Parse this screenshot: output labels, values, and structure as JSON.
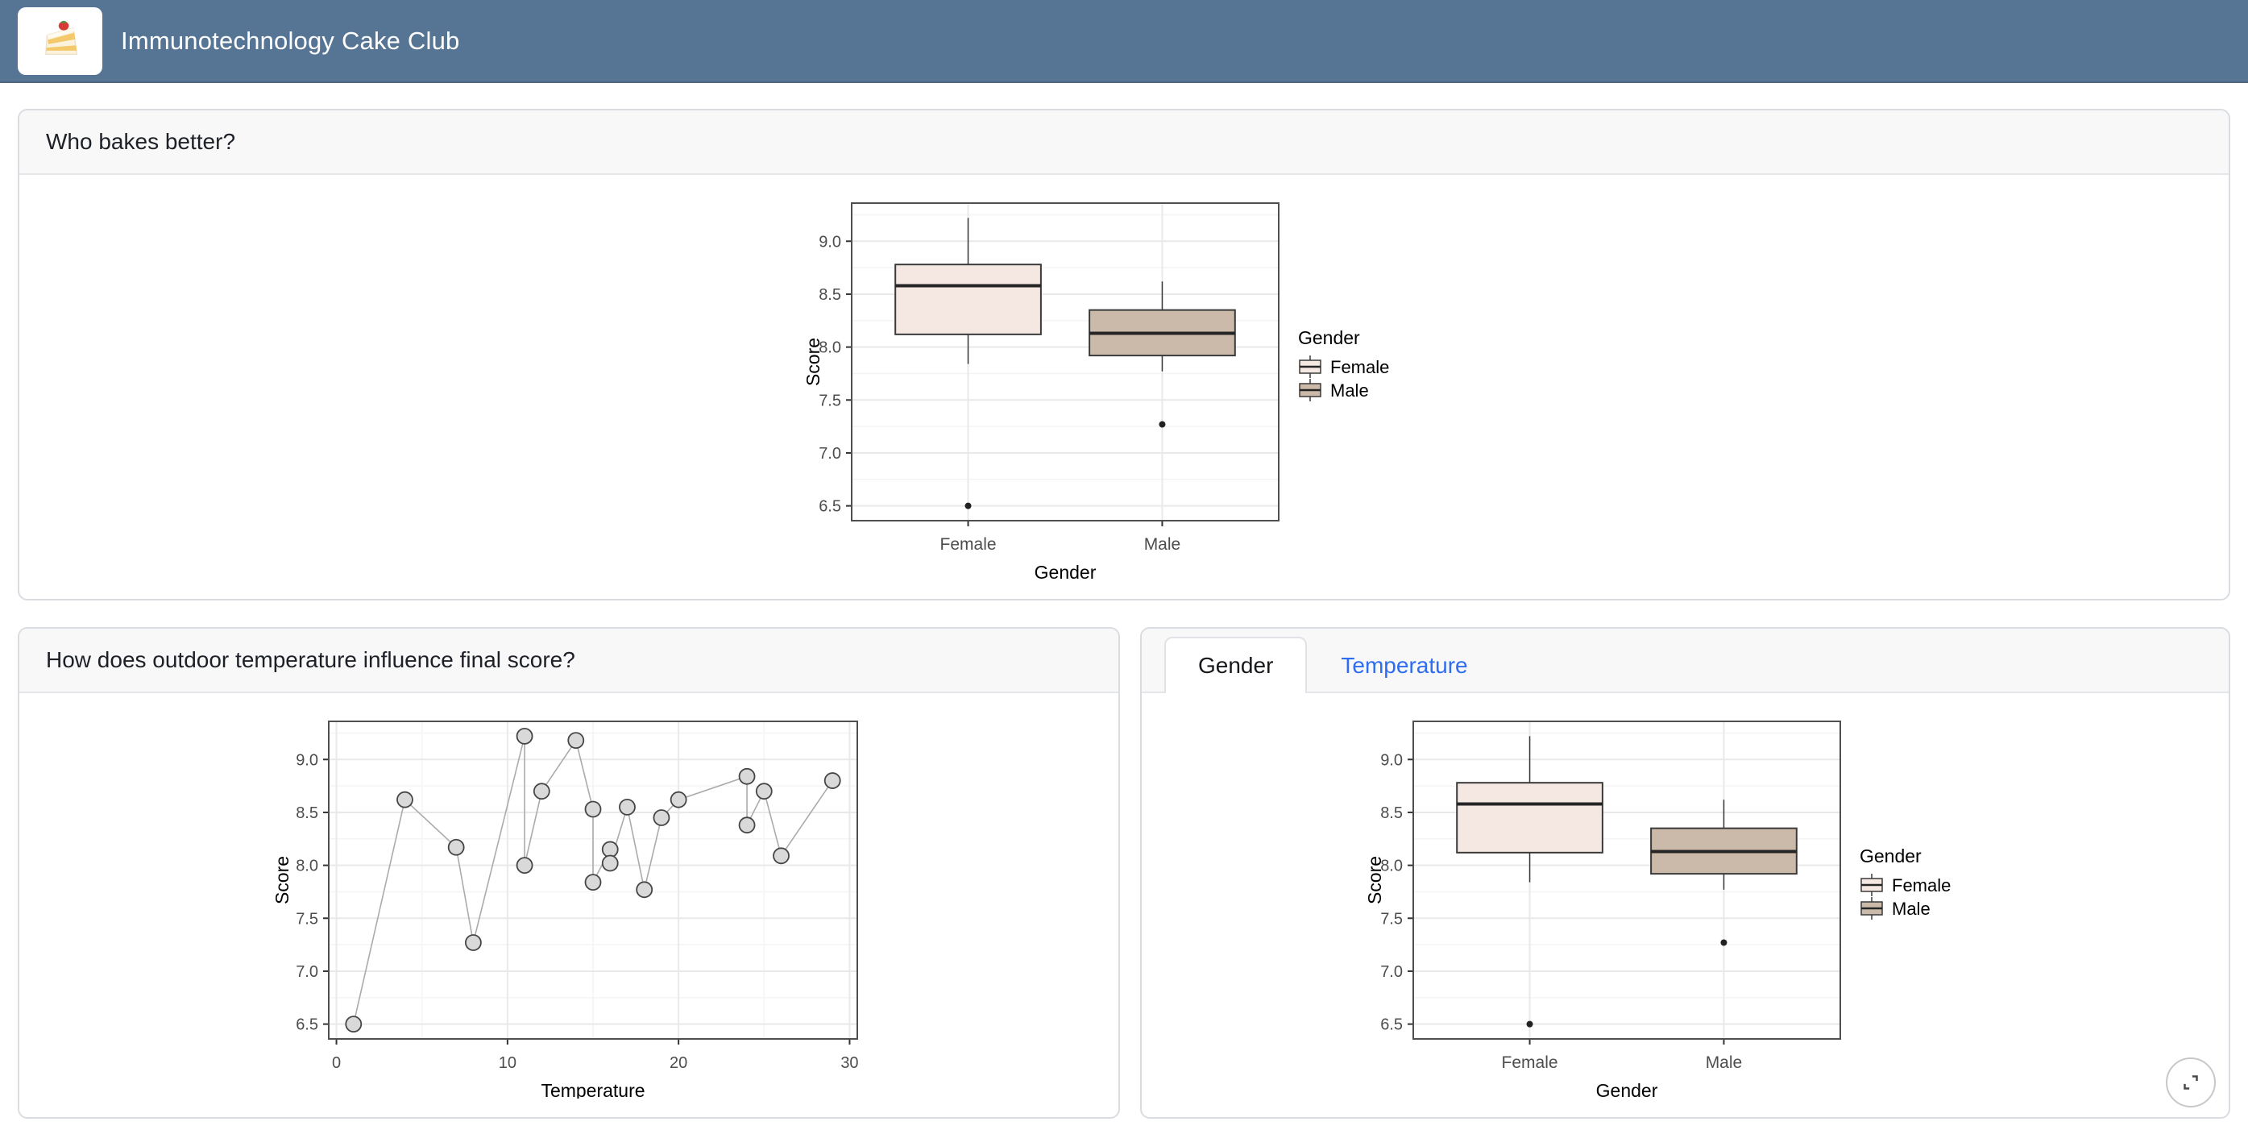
{
  "header": {
    "title": "Immunotechnology Cake Club",
    "logo_icon": "cake-slice-icon"
  },
  "cards": {
    "who_bakes": {
      "title": "Who bakes better?"
    },
    "temperature_card": {
      "title": "How does outdoor temperature influence final score?"
    },
    "tabbed_card": {
      "tabs": [
        {
          "label": "Gender",
          "active": true
        },
        {
          "label": "Temperature",
          "active": false
        }
      ],
      "expand_button_icon": "expand-icon"
    }
  },
  "colors": {
    "header_bg": "#567494",
    "tab_link_blue": "#2e6cf0",
    "female_fill": "#f5e8e2",
    "male_fill": "#cbbaa9",
    "marker_fill": "#d9d9d9",
    "marker_stroke": "#454545",
    "line_gray": "#ababab"
  },
  "chart_data": [
    {
      "type": "boxplot",
      "panel": "who-bakes-better-card",
      "xlabel": "Gender",
      "ylabel": "Score",
      "categories": [
        "Female",
        "Male"
      ],
      "yticks": [
        6.5,
        7.0,
        7.5,
        8.0,
        8.5,
        9.0
      ],
      "ylim": [
        6.36,
        9.36
      ],
      "grid": true,
      "legend": {
        "title": "Gender",
        "position": "right",
        "entries": [
          {
            "label": "Female",
            "fill": "#f5e8e2"
          },
          {
            "label": "Male",
            "fill": "#cbbaa9"
          }
        ]
      },
      "series": [
        {
          "name": "Female",
          "fill": "#f5e8e2",
          "whisker_low": 7.84,
          "q1": 8.12,
          "median": 8.58,
          "q3": 8.78,
          "whisker_high": 9.22,
          "outliers": [
            6.5
          ]
        },
        {
          "name": "Male",
          "fill": "#cbbaa9",
          "whisker_low": 7.77,
          "q1": 7.92,
          "median": 8.13,
          "q3": 8.35,
          "whisker_high": 8.62,
          "outliers": [
            7.27
          ]
        }
      ]
    },
    {
      "type": "line",
      "panel": "temperature-card",
      "xlabel": "Temperature",
      "ylabel": "Score",
      "xticks": [
        0,
        10,
        20,
        30
      ],
      "xticks_minor": [
        5,
        15,
        25
      ],
      "yticks": [
        6.5,
        7.0,
        7.5,
        8.0,
        8.5,
        9.0
      ],
      "xlim": [
        -0.45,
        30.45
      ],
      "ylim": [
        6.36,
        9.36
      ],
      "grid": true,
      "x": [
        1,
        4,
        7,
        8,
        11,
        11,
        12,
        14,
        15,
        15,
        16,
        16,
        17,
        18,
        19,
        20,
        24,
        24,
        25,
        26,
        29
      ],
      "y": [
        6.5,
        8.62,
        8.17,
        7.27,
        9.22,
        8.0,
        8.7,
        9.18,
        8.53,
        7.84,
        8.15,
        8.02,
        8.55,
        7.77,
        8.45,
        8.62,
        8.84,
        8.38,
        8.7,
        8.09,
        8.8
      ],
      "marker": {
        "fill": "#d9d9d9",
        "stroke": "#454545",
        "radius": 9.5
      },
      "line_color": "#ababab"
    },
    {
      "type": "boxplot",
      "panel": "gender-tab",
      "xlabel": "Gender",
      "ylabel": "Score",
      "categories": [
        "Female",
        "Male"
      ],
      "yticks": [
        6.5,
        7.0,
        7.5,
        8.0,
        8.5,
        9.0
      ],
      "ylim": [
        6.36,
        9.36
      ],
      "grid": true,
      "legend": {
        "title": "Gender",
        "position": "right",
        "entries": [
          {
            "label": "Female",
            "fill": "#f5e8e2"
          },
          {
            "label": "Male",
            "fill": "#cbbaa9"
          }
        ]
      },
      "series": [
        {
          "name": "Female",
          "fill": "#f5e8e2",
          "whisker_low": 7.84,
          "q1": 8.12,
          "median": 8.58,
          "q3": 8.78,
          "whisker_high": 9.22,
          "outliers": [
            6.5
          ]
        },
        {
          "name": "Male",
          "fill": "#cbbaa9",
          "whisker_low": 7.77,
          "q1": 7.92,
          "median": 8.13,
          "q3": 8.35,
          "whisker_high": 8.62,
          "outliers": [
            7.27
          ]
        }
      ]
    }
  ]
}
